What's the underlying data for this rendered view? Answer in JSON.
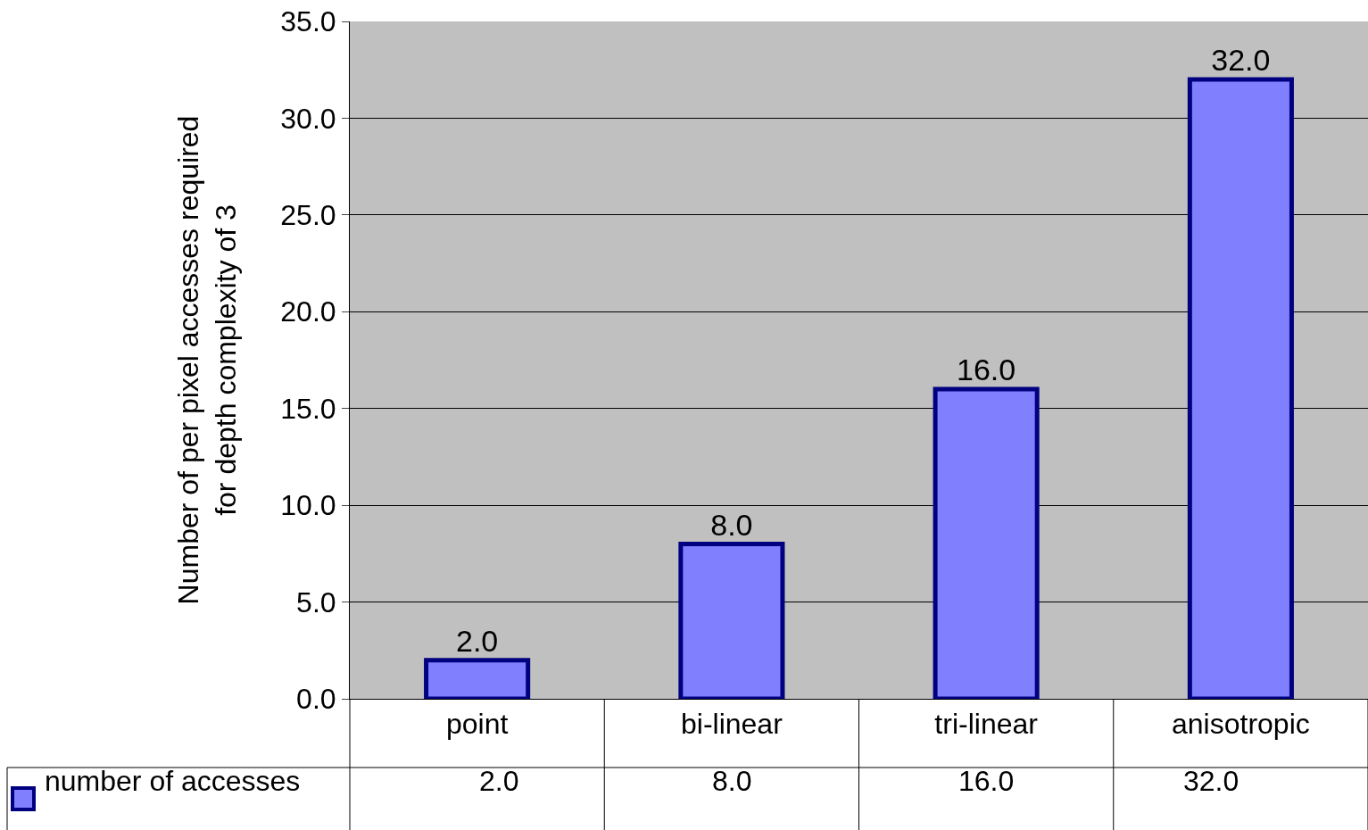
{
  "chart_data": {
    "type": "bar",
    "ylabel": "Number of per pixel accesses required\nfor depth complexity of 3",
    "categories": [
      "point",
      "bi-linear",
      "tri-linear",
      "anisotropic"
    ],
    "series": [
      {
        "name": "number of accesses",
        "color": "#8080ff",
        "values": [
          2.0,
          8.0,
          16.0,
          32.0
        ],
        "value_labels": [
          "2.0",
          "8.0",
          "16.0",
          "32.0"
        ]
      }
    ],
    "ylim": [
      0,
      35
    ],
    "yticks": [
      {
        "value": 0,
        "label": "0.0"
      },
      {
        "value": 5,
        "label": "5.0"
      },
      {
        "value": 10,
        "label": "10.0"
      },
      {
        "value": 15,
        "label": "15.0"
      },
      {
        "value": 20,
        "label": "20.0"
      },
      {
        "value": 25,
        "label": "25.0"
      },
      {
        "value": 30,
        "label": "30.0"
      },
      {
        "value": 35,
        "label": "35.0"
      }
    ],
    "grid": "y"
  }
}
